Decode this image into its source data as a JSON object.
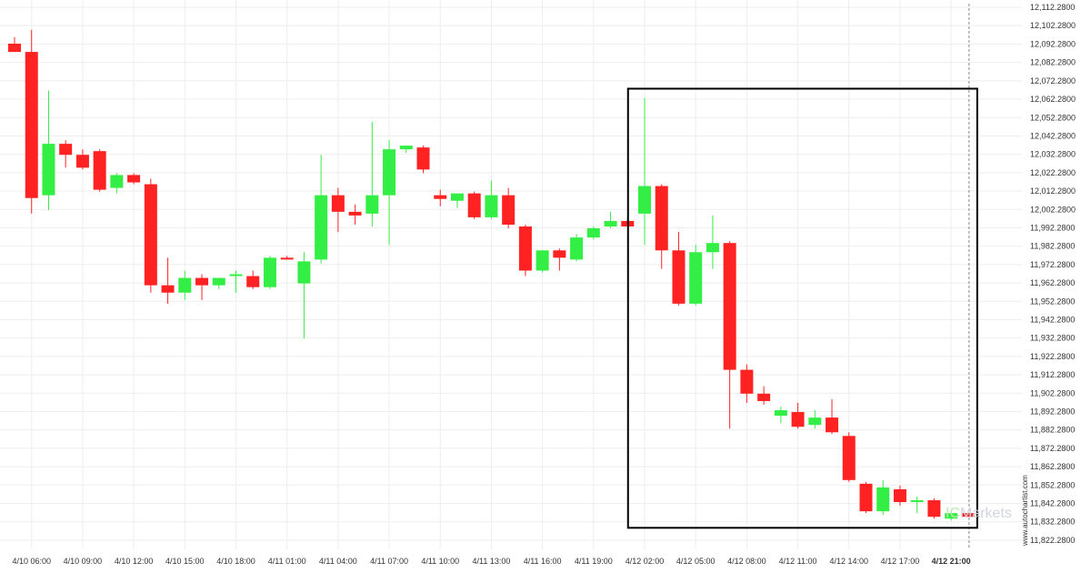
{
  "chart_data": {
    "type": "candlestick",
    "grid": true,
    "ylim": [
      11817.28,
      12114.28
    ],
    "y_ticks": [
      "12,112.2800",
      "12,102.2800",
      "12,092.2800",
      "12,082.2800",
      "12,072.2800",
      "12,062.2800",
      "12,052.2800",
      "12,042.2800",
      "12,032.2800",
      "12,022.2800",
      "12,012.2800",
      "12,002.2800",
      "11,992.2800",
      "11,982.2800",
      "11,972.2800",
      "11,962.2800",
      "11,952.2800",
      "11,942.2800",
      "11,932.2800",
      "11,922.2800",
      "11,912.2800",
      "11,902.2800",
      "11,892.2800",
      "11,882.2800",
      "11,872.2800",
      "11,862.2800",
      "11,852.2800",
      "11,842.2800",
      "11,832.2800",
      "11,822.2800"
    ],
    "x_ticks": [
      {
        "label": "4/10 06:00",
        "index": 1
      },
      {
        "label": "4/10 09:00",
        "index": 4
      },
      {
        "label": "4/10 12:00",
        "index": 7
      },
      {
        "label": "4/10 15:00",
        "index": 10
      },
      {
        "label": "4/10 18:00",
        "index": 13
      },
      {
        "label": "4/11 01:00",
        "index": 16
      },
      {
        "label": "4/11 04:00",
        "index": 19
      },
      {
        "label": "4/11 07:00",
        "index": 22
      },
      {
        "label": "4/11 10:00",
        "index": 25
      },
      {
        "label": "4/11 13:00",
        "index": 28
      },
      {
        "label": "4/11 16:00",
        "index": 31
      },
      {
        "label": "4/11 19:00",
        "index": 34
      },
      {
        "label": "4/12 02:00",
        "index": 37
      },
      {
        "label": "4/12 05:00",
        "index": 40
      },
      {
        "label": "4/12 08:00",
        "index": 43
      },
      {
        "label": "4/12 11:00",
        "index": 46
      },
      {
        "label": "4/12 14:00",
        "index": 49
      },
      {
        "label": "4/12 17:00",
        "index": 52
      },
      {
        "label": "4/12 21:00",
        "index": 55,
        "bold": true
      }
    ],
    "candles": [
      {
        "o": 12092.5,
        "h": 12096.0,
        "l": 12088.0,
        "c": 12088.0
      },
      {
        "o": 12088.0,
        "h": 12100.0,
        "l": 12000.0,
        "c": 12008.5
      },
      {
        "o": 12010.0,
        "h": 12067.0,
        "l": 12002.0,
        "c": 12038.0
      },
      {
        "o": 12038.0,
        "h": 12040.0,
        "l": 12025.0,
        "c": 12032.0
      },
      {
        "o": 12032.0,
        "h": 12035.0,
        "l": 12024.0,
        "c": 12025.0
      },
      {
        "o": 12034.0,
        "h": 12035.0,
        "l": 12012.0,
        "c": 12013.0
      },
      {
        "o": 12014.0,
        "h": 12022.0,
        "l": 12011.0,
        "c": 12021.0
      },
      {
        "o": 12021.0,
        "h": 12022.0,
        "l": 12016.0,
        "c": 12017.0
      },
      {
        "o": 12016.0,
        "h": 12019.0,
        "l": 11957.0,
        "c": 11961.0
      },
      {
        "o": 11961.0,
        "h": 11976.0,
        "l": 11951.0,
        "c": 11957.0
      },
      {
        "o": 11957.0,
        "h": 11969.0,
        "l": 11953.0,
        "c": 11965.0
      },
      {
        "o": 11965.0,
        "h": 11967.0,
        "l": 11953.0,
        "c": 11961.0
      },
      {
        "o": 11961.0,
        "h": 11965.0,
        "l": 11959.0,
        "c": 11965.0
      },
      {
        "o": 11966.0,
        "h": 11969.0,
        "l": 11957.0,
        "c": 11967.0
      },
      {
        "o": 11966.0,
        "h": 11969.0,
        "l": 11959.0,
        "c": 11960.0
      },
      {
        "o": 11960.0,
        "h": 11977.0,
        "l": 11959.0,
        "c": 11976.0
      },
      {
        "o": 11976.0,
        "h": 11977.0,
        "l": 11975.0,
        "c": 11975.0
      },
      {
        "o": 11962.0,
        "h": 11979.0,
        "l": 11932.0,
        "c": 11974.0
      },
      {
        "o": 11975.0,
        "h": 12032.0,
        "l": 11973.0,
        "c": 12010.0
      },
      {
        "o": 12010.0,
        "h": 12014.0,
        "l": 11990.0,
        "c": 12001.0
      },
      {
        "o": 12001.0,
        "h": 12005.0,
        "l": 11994.0,
        "c": 11999.0
      },
      {
        "o": 12000.0,
        "h": 12050.0,
        "l": 11993.0,
        "c": 12010.0
      },
      {
        "o": 12010.0,
        "h": 12040.0,
        "l": 11983.0,
        "c": 12035.0
      },
      {
        "o": 12035.0,
        "h": 12037.0,
        "l": 12033.0,
        "c": 12037.0
      },
      {
        "o": 12036.0,
        "h": 12037.0,
        "l": 12022.0,
        "c": 12024.0
      },
      {
        "o": 12010.0,
        "h": 12013.0,
        "l": 12004.0,
        "c": 12008.0
      },
      {
        "o": 12007.0,
        "h": 12011.0,
        "l": 12003.0,
        "c": 12011.0
      },
      {
        "o": 12011.0,
        "h": 12012.0,
        "l": 11997.0,
        "c": 11998.0
      },
      {
        "o": 11998.0,
        "h": 12018.0,
        "l": 11997.0,
        "c": 12010.0
      },
      {
        "o": 12010.0,
        "h": 12014.0,
        "l": 11992.0,
        "c": 11994.0
      },
      {
        "o": 11993.0,
        "h": 11994.0,
        "l": 11966.0,
        "c": 11969.0
      },
      {
        "o": 11969.0,
        "h": 11980.0,
        "l": 11968.0,
        "c": 11980.0
      },
      {
        "o": 11980.0,
        "h": 11981.0,
        "l": 11969.0,
        "c": 11976.0
      },
      {
        "o": 11975.0,
        "h": 11989.0,
        "l": 11974.0,
        "c": 11987.0
      },
      {
        "o": 11987.0,
        "h": 11993.0,
        "l": 11986.0,
        "c": 11992.0
      },
      {
        "o": 11993.0,
        "h": 12001.0,
        "l": 11992.0,
        "c": 11996.0
      },
      {
        "o": 11996.0,
        "h": 11998.0,
        "l": 11993.0,
        "c": 11993.0
      },
      {
        "o": 12000.0,
        "h": 12063.0,
        "l": 11983.0,
        "c": 12015.0
      },
      {
        "o": 12015.0,
        "h": 12016.0,
        "l": 11970.0,
        "c": 11980.0
      },
      {
        "o": 11980.0,
        "h": 11990.0,
        "l": 11950.0,
        "c": 11951.0
      },
      {
        "o": 11951.0,
        "h": 11983.0,
        "l": 11950.0,
        "c": 11979.0
      },
      {
        "o": 11979.0,
        "h": 11999.0,
        "l": 11970.0,
        "c": 11984.0
      },
      {
        "o": 11984.0,
        "h": 11985.0,
        "l": 11883.0,
        "c": 11915.0
      },
      {
        "o": 11915.0,
        "h": 11918.0,
        "l": 11897.0,
        "c": 11902.0
      },
      {
        "o": 11902.0,
        "h": 11906.0,
        "l": 11896.0,
        "c": 11898.0
      },
      {
        "o": 11890.0,
        "h": 11895.0,
        "l": 11886.0,
        "c": 11893.0
      },
      {
        "o": 11892.0,
        "h": 11897.0,
        "l": 11883.0,
        "c": 11884.0
      },
      {
        "o": 11885.0,
        "h": 11893.0,
        "l": 11883.0,
        "c": 11889.0
      },
      {
        "o": 11889.0,
        "h": 11899.0,
        "l": 11880.0,
        "c": 11881.0
      },
      {
        "o": 11879.0,
        "h": 11881.0,
        "l": 11854.0,
        "c": 11855.0
      },
      {
        "o": 11853.0,
        "h": 11854.0,
        "l": 11837.0,
        "c": 11838.0
      },
      {
        "o": 11838.0,
        "h": 11855.0,
        "l": 11836.0,
        "c": 11851.0
      },
      {
        "o": 11850.0,
        "h": 11852.0,
        "l": 11841.0,
        "c": 11843.0
      },
      {
        "o": 11844.0,
        "h": 11846.0,
        "l": 11837.0,
        "c": 11844.0
      },
      {
        "o": 11844.0,
        "h": 11845.0,
        "l": 11834.0,
        "c": 11835.0
      },
      {
        "o": 11834.0,
        "h": 11838.0,
        "l": 11833.0,
        "c": 11837.0
      },
      {
        "o": 11837.0,
        "h": 11838.0,
        "l": 11835.0,
        "c": 11835.0
      }
    ],
    "pattern_box": {
      "start_index": 36,
      "end_index": 56,
      "y_high": 12068.0,
      "y_low": 11829.0
    },
    "current_index": 56,
    "colors": {
      "up": "#33ee44",
      "down": "#ff2222",
      "grid": "#eeeeee",
      "box": "#000000",
      "marker": "#888888"
    }
  },
  "watermark": {
    "prefix": "IC",
    "name": "Markets"
  },
  "credit": "www.autochartist.com"
}
